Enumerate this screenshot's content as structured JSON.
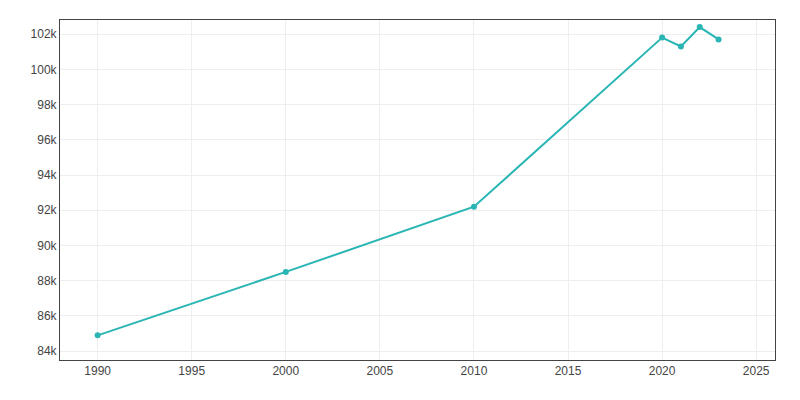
{
  "chart_data": {
    "type": "line",
    "x": [
      1990,
      2000,
      2010,
      2020,
      2021,
      2022,
      2023
    ],
    "values": [
      84900,
      88500,
      92200,
      101800,
      101300,
      102400,
      101700
    ],
    "color": "#2ab5b5",
    "marker": "circle",
    "xlim": [
      1988,
      2026
    ],
    "xticks": [
      1990,
      1995,
      2000,
      2005,
      2010,
      2015,
      2020,
      2025
    ],
    "ylim": [
      83500,
      102800
    ],
    "yticks": [
      {
        "value": 84000,
        "label": "84k"
      },
      {
        "value": 86000,
        "label": "86k"
      },
      {
        "value": 88000,
        "label": "88k"
      },
      {
        "value": 90000,
        "label": "90k"
      },
      {
        "value": 92000,
        "label": "92k"
      },
      {
        "value": 94000,
        "label": "94k"
      },
      {
        "value": 96000,
        "label": "96k"
      },
      {
        "value": 98000,
        "label": "98k"
      },
      {
        "value": 100000,
        "label": "100k"
      },
      {
        "value": 102000,
        "label": "102k"
      }
    ],
    "grid": true
  }
}
